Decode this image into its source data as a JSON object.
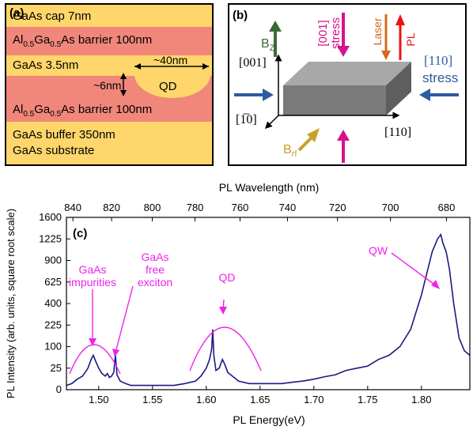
{
  "panel_a": {
    "label": "(a)",
    "layers": [
      {
        "text": "GaAs cap 7nm",
        "color": "#FFD66B"
      },
      {
        "pre": "Al",
        "sub1": "0.5",
        "mid": "Ga",
        "sub2": "0.5",
        "post": "As barrier 100nm",
        "color": "#F0877A"
      },
      {
        "text": "GaAs 3.5nm",
        "color": "#FFD66B"
      },
      {
        "pre": "Al",
        "sub1": "0.5",
        "mid": "Ga",
        "sub2": "0.5",
        "post": "As barrier 100nm",
        "color": "#F0877A"
      },
      {
        "text": "GaAs buffer 350nm",
        "color": "#FFD66B"
      },
      {
        "text": "GaAs substrate",
        "color": "#FFD66B"
      }
    ],
    "qd_label": "QD",
    "qd_width": "~40nm",
    "qd_height": "~6nm"
  },
  "panel_b": {
    "label": "(b)",
    "bz": "B",
    "bz_sub": "Z",
    "brf": "B",
    "brf_sub": "rf",
    "stress001_a": "[001]",
    "stress001_b": "stress",
    "laser": "Laser",
    "pl": "PL",
    "stress110_a": "[110]",
    "stress110_b": "stress",
    "axis_001": "[001]",
    "axis_1m10": "[1̅0]",
    "axis_110": "[110]",
    "colors": {
      "magenta": "#D6138C",
      "orange": "#D2691E",
      "red": "#EE1111",
      "blue": "#2E5AA0",
      "green": "#3A6B35",
      "gold": "#C8A02A"
    }
  },
  "chart_data": {
    "type": "line",
    "panel_label": "(c)",
    "top_axis_label": "PL Wavelength (nm)",
    "top_ticks": [
      840,
      820,
      800,
      780,
      760,
      740,
      720,
      700,
      680
    ],
    "xlabel": "PL Energy(eV)",
    "ylabel": "PL Intensity (arb. units, square root scale)",
    "xlim": [
      1.47,
      1.845
    ],
    "ylim": [
      0,
      1600
    ],
    "y_scale": "sqrt",
    "x_ticks": [
      1.5,
      1.55,
      1.6,
      1.65,
      1.7,
      1.75,
      1.8
    ],
    "y_ticks": [
      0,
      25,
      100,
      225,
      400,
      625,
      900,
      1225,
      1600
    ],
    "series_color": "#1A1A80",
    "x": [
      1.47,
      1.475,
      1.48,
      1.485,
      1.49,
      1.493,
      1.495,
      1.497,
      1.5,
      1.503,
      1.506,
      1.508,
      1.51,
      1.512,
      1.514,
      1.5155,
      1.517,
      1.52,
      1.525,
      1.53,
      1.54,
      1.55,
      1.56,
      1.57,
      1.58,
      1.59,
      1.595,
      1.6,
      1.603,
      1.605,
      1.606,
      1.607,
      1.609,
      1.612,
      1.615,
      1.617,
      1.62,
      1.625,
      1.63,
      1.64,
      1.65,
      1.66,
      1.67,
      1.68,
      1.69,
      1.7,
      1.71,
      1.72,
      1.73,
      1.74,
      1.75,
      1.76,
      1.77,
      1.78,
      1.785,
      1.79,
      1.795,
      1.8,
      1.805,
      1.81,
      1.815,
      1.818,
      1.82,
      1.823,
      1.826,
      1.83,
      1.835,
      1.84,
      1.845
    ],
    "y": [
      1,
      2,
      6,
      10,
      25,
      50,
      64,
      45,
      25,
      14,
      10,
      14,
      8,
      10,
      16,
      64,
      12,
      4,
      2,
      1,
      1,
      1,
      1,
      1,
      2,
      4,
      10,
      25,
      49,
      90,
      196,
      64,
      20,
      25,
      49,
      36,
      16,
      9,
      4,
      2,
      2,
      2,
      2,
      3,
      4,
      6,
      9,
      12,
      20,
      25,
      30,
      49,
      64,
      100,
      144,
      196,
      324,
      484,
      729,
      1024,
      1225,
      1296,
      1156,
      1024,
      784,
      400,
      144,
      81,
      64
    ]
  },
  "annotations": {
    "impurities_a": "GaAs",
    "impurities_b": "impurities",
    "free_a": "GaAs",
    "free_b": "free",
    "free_c": "exciton",
    "qd": "QD",
    "qw": "QW",
    "color": "#EE22EE"
  }
}
